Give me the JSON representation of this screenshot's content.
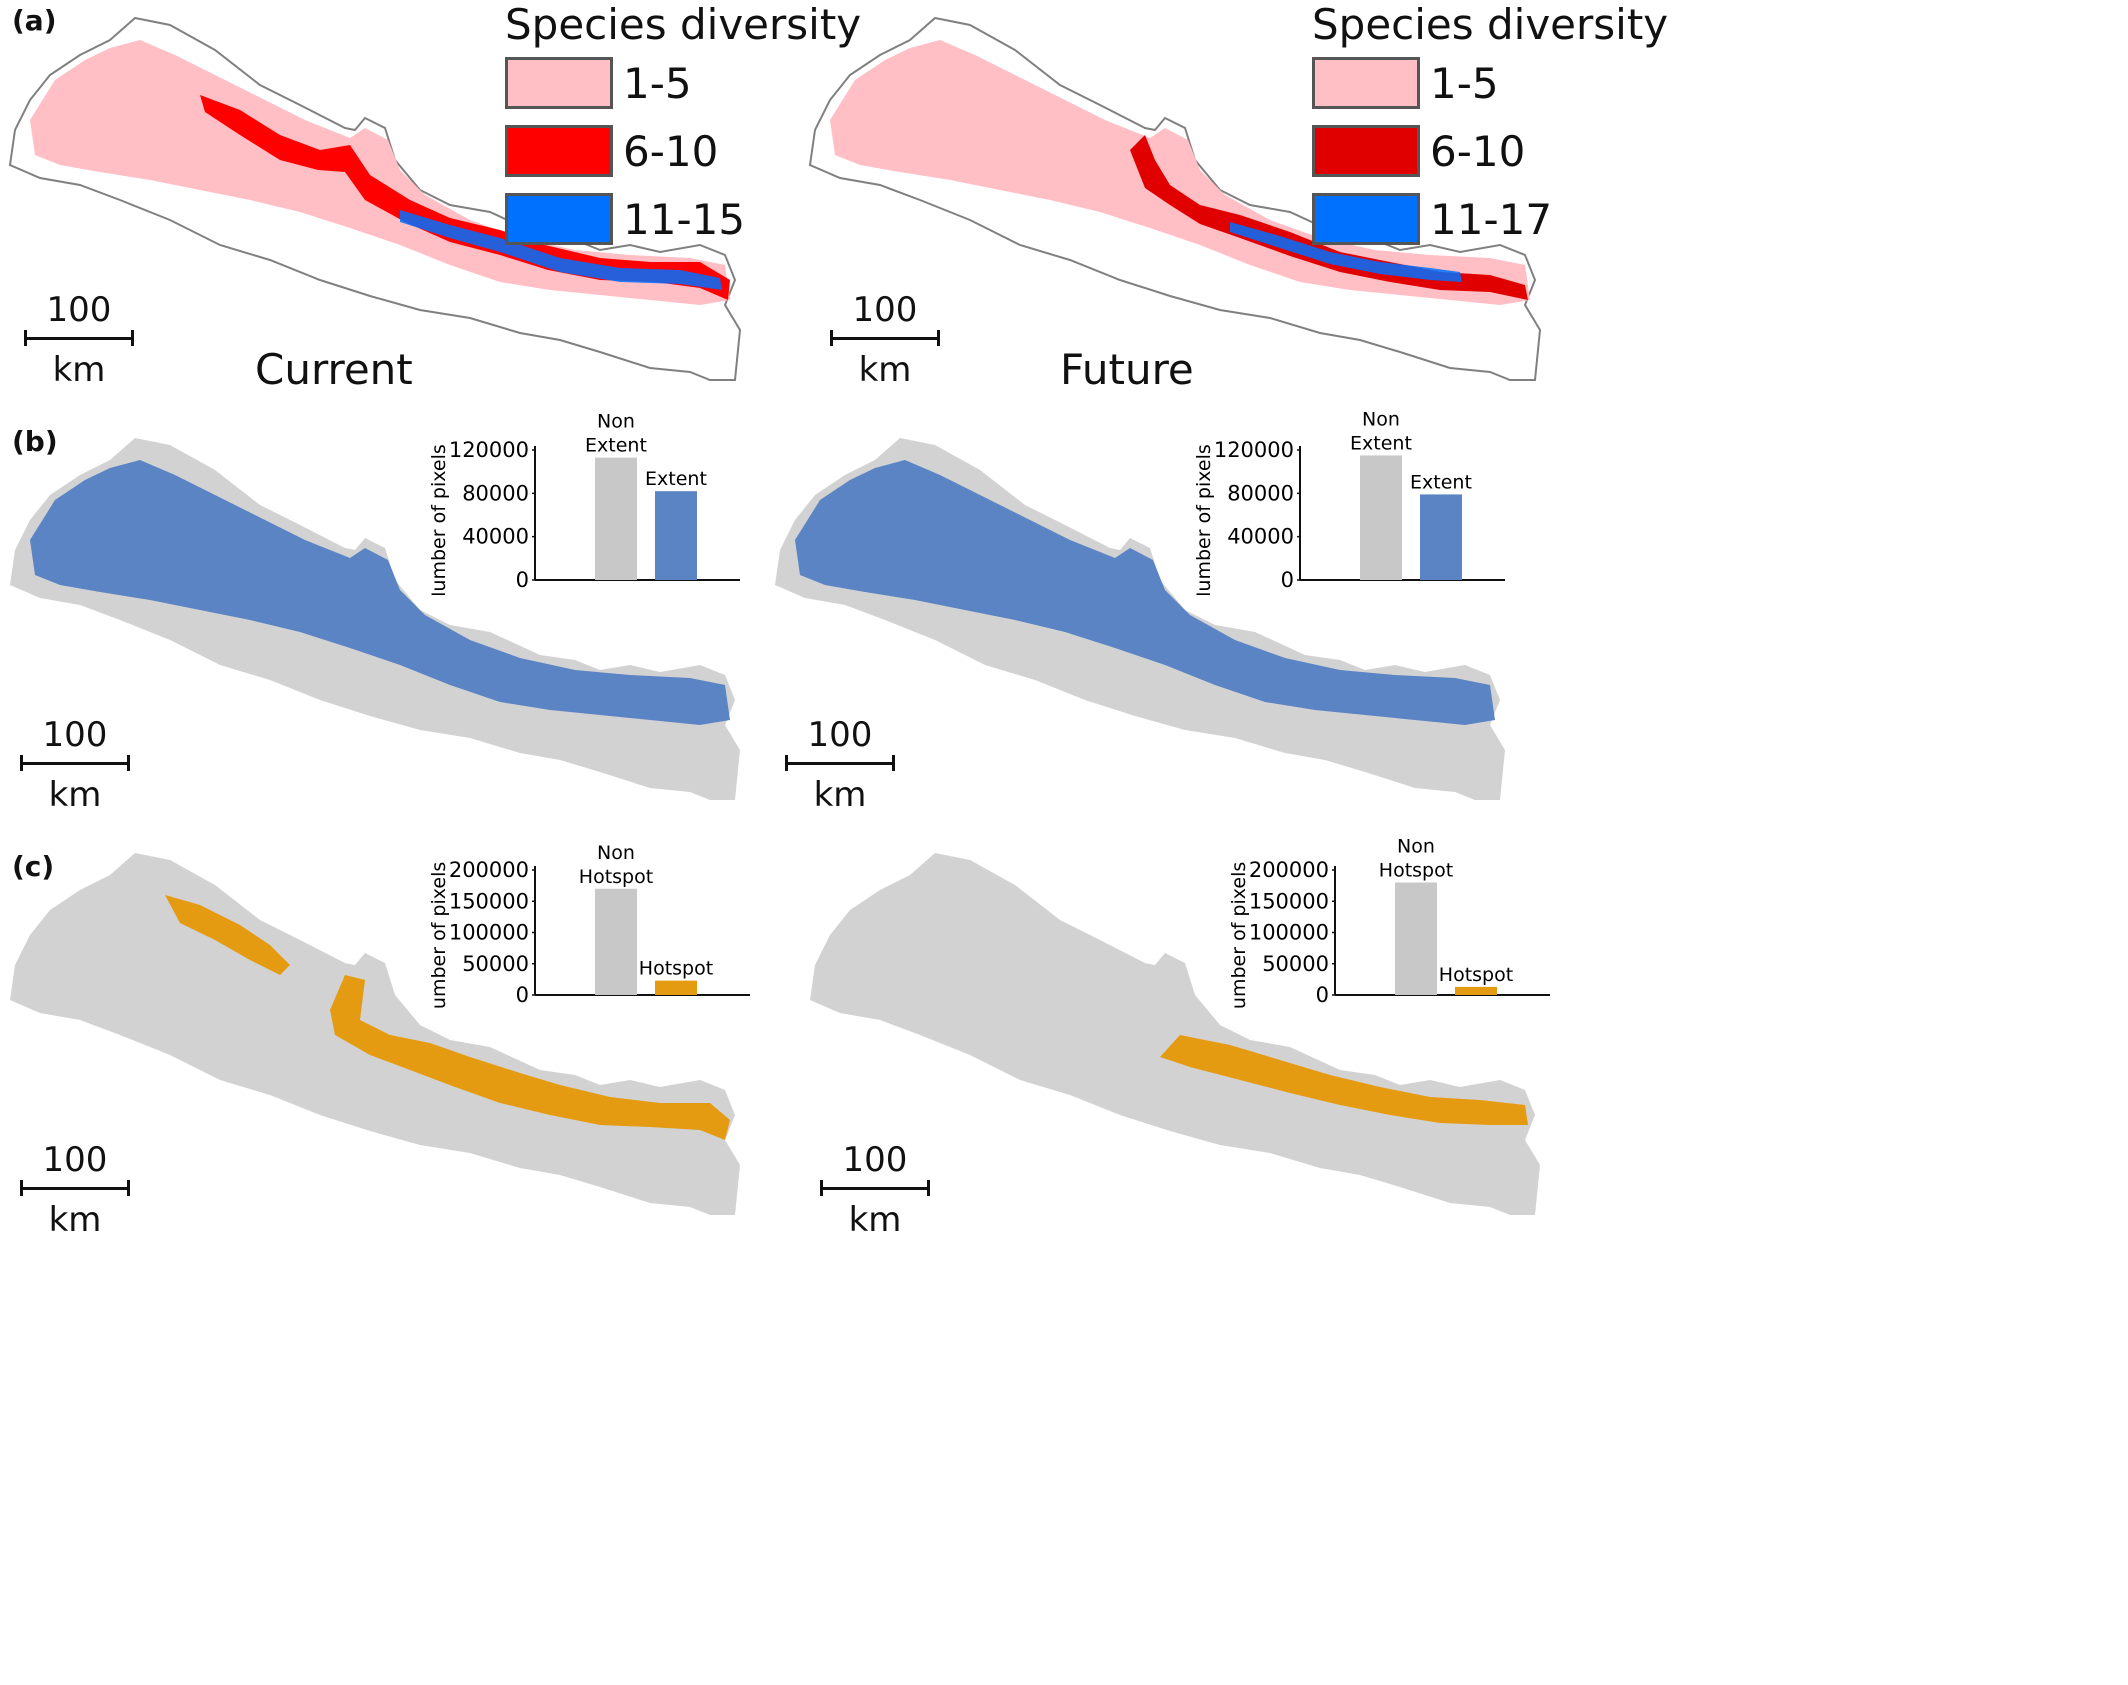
{
  "panels": {
    "a": {
      "tag": "(a)",
      "legend_title": "Species diversity",
      "maps": [
        {
          "scenario": "Current",
          "legend": [
            {
              "label": "1-5",
              "color": "#FFBFC5"
            },
            {
              "label": "6-10",
              "color": "#FF0000"
            },
            {
              "label": "11-15",
              "color": "#0070FF"
            }
          ]
        },
        {
          "scenario": "Future",
          "legend": [
            {
              "label": "1-5",
              "color": "#FFBFC5"
            },
            {
              "label": "6-10",
              "color": "#E00000"
            },
            {
              "label": "11-17",
              "color": "#0070FF"
            }
          ]
        }
      ]
    },
    "b": {
      "tag": "(b)"
    },
    "c": {
      "tag": "(c)"
    }
  },
  "scalebar": {
    "value": "100",
    "unit": "km"
  },
  "colors": {
    "background": "#D2D2D2",
    "extent": "#5B84C4",
    "hotspot": "#E59B11",
    "outline": "#808080",
    "bar_non": "#C8C8C8"
  },
  "chart_data": [
    {
      "type": "bar",
      "panel": "b",
      "scenario": "Current",
      "ylabel": "Number of pixels",
      "ylim": [
        0,
        120000
      ],
      "yticks": [
        "0",
        "40000",
        "80000",
        "120000"
      ],
      "categories": [
        "Non Extent",
        "Extent"
      ],
      "category_lines": [
        [
          "Non",
          "Extent"
        ],
        [
          "Extent"
        ]
      ],
      "values": [
        113000,
        82000
      ]
    },
    {
      "type": "bar",
      "panel": "b",
      "scenario": "Future",
      "ylabel": "Number of pixels",
      "ylim": [
        0,
        120000
      ],
      "yticks": [
        "0",
        "40000",
        "80000",
        "120000"
      ],
      "categories": [
        "Non Extent",
        "Extent"
      ],
      "category_lines": [
        [
          "Non",
          "Extent"
        ],
        [
          "Extent"
        ]
      ],
      "values": [
        115000,
        79000
      ]
    },
    {
      "type": "bar",
      "panel": "c",
      "scenario": "Current",
      "ylabel": "Number of pixels",
      "ylim": [
        0,
        200000
      ],
      "yticks": [
        "0",
        "50000",
        "100000",
        "150000",
        "200000"
      ],
      "categories": [
        "Non Hotspot",
        "Hotspot"
      ],
      "category_lines": [
        [
          "Non",
          "Hotspot"
        ],
        [
          "Hotspot"
        ]
      ],
      "values": [
        170000,
        23000
      ]
    },
    {
      "type": "bar",
      "panel": "c",
      "scenario": "Future",
      "ylabel": "Number of pixels",
      "ylim": [
        0,
        200000
      ],
      "yticks": [
        "0",
        "50000",
        "100000",
        "150000",
        "200000"
      ],
      "categories": [
        "Non Hotspot",
        "Hotspot"
      ],
      "category_lines": [
        [
          "Non",
          "Hotspot"
        ],
        [
          "Hotspot"
        ]
      ],
      "values": [
        180000,
        13000
      ]
    }
  ]
}
